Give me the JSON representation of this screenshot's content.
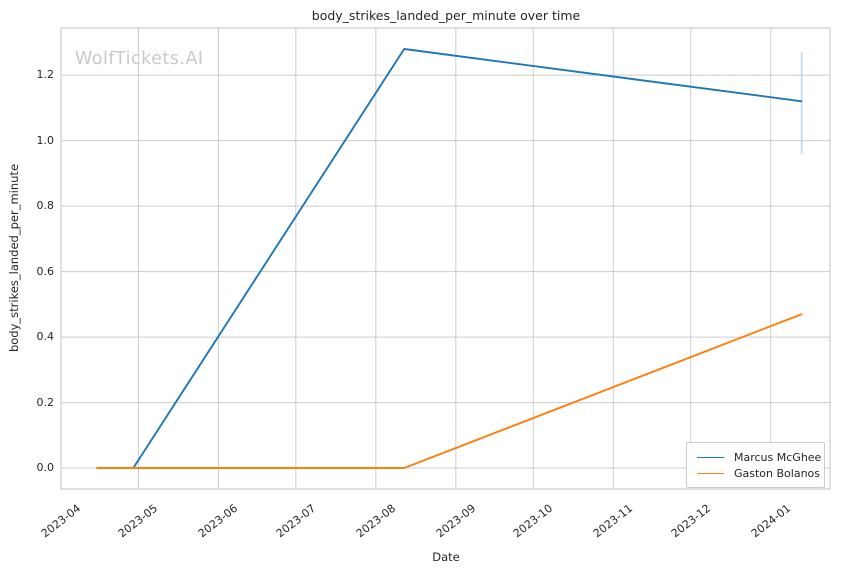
{
  "watermark": {
    "text": "WolfTickets.AI",
    "color": "#c9c9c9"
  },
  "chart_data": {
    "type": "line",
    "title": "body_strikes_landed_per_minute over time",
    "xlabel": "Date",
    "ylabel": "body_strikes_landed_per_minute",
    "grid": true,
    "legend_position": "lower right",
    "x_tick_labels": [
      "2023-04",
      "2023-05",
      "2023-06",
      "2023-07",
      "2023-08",
      "2023-09",
      "2023-10",
      "2023-11",
      "2023-12",
      "2024-01"
    ],
    "y_ticks": [
      0.0,
      0.2,
      0.4,
      0.6,
      0.8,
      1.0,
      1.2
    ],
    "y_tick_labels": [
      "0.0",
      "0.2",
      "0.4",
      "0.6",
      "0.8",
      "1.0",
      "1.2"
    ],
    "xlim": [
      "2023-04-01",
      "2024-01-24"
    ],
    "ylim": [
      -0.064,
      1.344
    ],
    "series": [
      {
        "name": "Marcus McGhee",
        "color": "#1f77b4",
        "x": [
          "2023-04-29",
          "2023-08-12",
          "2024-01-13"
        ],
        "y": [
          0.0,
          1.28,
          1.12
        ],
        "error_bar": {
          "x": "2024-01-13",
          "y_min": 0.96,
          "y_max": 1.27,
          "color": "#b8d8eb"
        }
      },
      {
        "name": "Gaston Bolanos",
        "color": "#ff7f0e",
        "x": [
          "2023-04-15",
          "2023-08-12",
          "2024-01-13"
        ],
        "y": [
          0.0,
          0.0,
          0.47
        ],
        "error_bar": null
      }
    ],
    "colors": {
      "grid": "#cccccc",
      "axis_border": "#cccccc",
      "text": "#262626",
      "background": "#ffffff"
    }
  }
}
